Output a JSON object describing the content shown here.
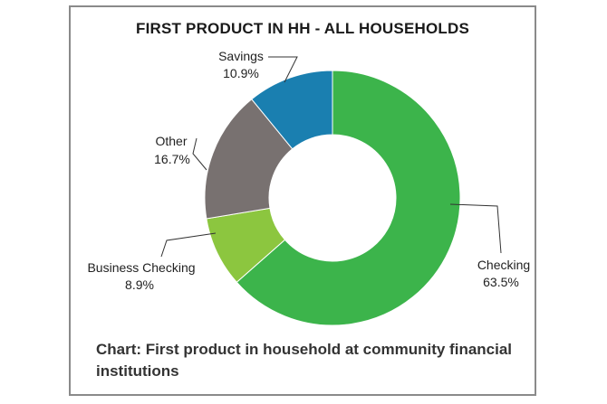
{
  "chart_data": {
    "type": "pie",
    "title": "FIRST PRODUCT IN HH - ALL HOUSEHOLDS",
    "caption": "Chart: First product in household at community financial institutions",
    "slices": [
      {
        "name": "Checking",
        "value": 63.5,
        "value_label": "63.5%",
        "color": "#3cb44b"
      },
      {
        "name": "Business Checking",
        "value": 8.9,
        "value_label": "8.9%",
        "color": "#8cc63f"
      },
      {
        "name": "Other",
        "value": 16.7,
        "value_label": "16.7%",
        "color": "#787170"
      },
      {
        "name": "Savings",
        "value": 10.9,
        "value_label": "10.9%",
        "color": "#1a7fb0"
      }
    ],
    "donut": true
  }
}
